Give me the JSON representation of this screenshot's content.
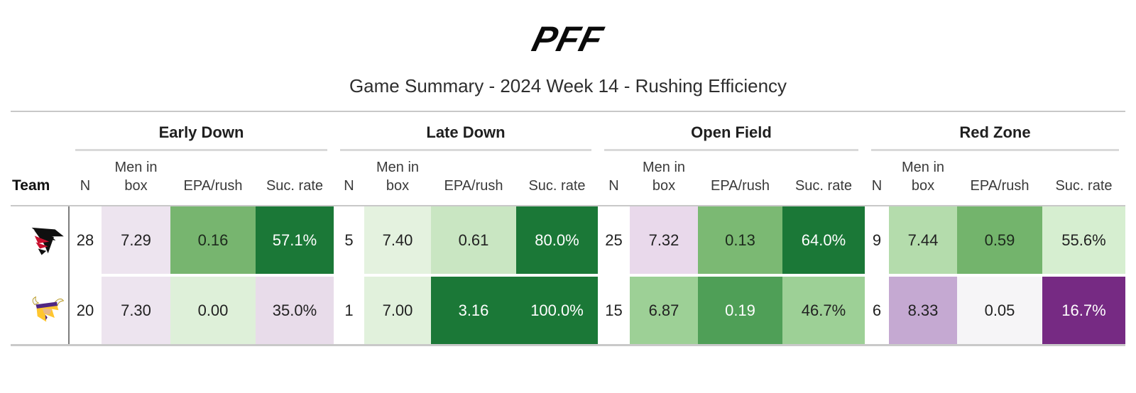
{
  "brand": {
    "logo_text": "PFF"
  },
  "title": "Game Summary - 2024 Week 14 - Rushing Efficiency",
  "table": {
    "team_header": "Team",
    "sections": [
      {
        "label": "Early Down"
      },
      {
        "label": "Late Down"
      },
      {
        "label": "Open Field"
      },
      {
        "label": "Red Zone"
      }
    ],
    "stat_headers": [
      "N",
      "Men in box",
      "EPA/rush",
      "Suc. rate"
    ]
  },
  "colors": {
    "dark_green": "#1b7837",
    "dark_purple": "#762a83",
    "light_purple": "#ede4ef",
    "neutral_white": "#f6f5f7",
    "rule_gray": "#c8c8c8",
    "team_divider_gray": "#7d7d7d"
  },
  "chart_data": {
    "type": "table",
    "title": "Game Summary - 2024 Week 14 - Rushing Efficiency",
    "column_groups": [
      "Early Down",
      "Late Down",
      "Open Field",
      "Red Zone"
    ],
    "columns_per_group": [
      "N",
      "Men in box",
      "EPA/rush",
      "Suc. rate"
    ],
    "rows": [
      {
        "team": "Atlanta Falcons",
        "early_down": {
          "n": 28,
          "men_in_box": 7.29,
          "epa_per_rush": 0.16,
          "success_rate": "57.1%"
        },
        "late_down": {
          "n": 5,
          "men_in_box": 7.4,
          "epa_per_rush": 0.61,
          "success_rate": "80.0%"
        },
        "open_field": {
          "n": 25,
          "men_in_box": 7.32,
          "epa_per_rush": 0.13,
          "success_rate": "64.0%"
        },
        "red_zone": {
          "n": 9,
          "men_in_box": 7.44,
          "epa_per_rush": 0.59,
          "success_rate": "55.6%"
        },
        "cells": [
          {
            "v": "28",
            "bg": "#ffffff",
            "fg": "#212121"
          },
          {
            "v": "7.29",
            "bg": "#ede4ef",
            "fg": "#212121"
          },
          {
            "v": "0.16",
            "bg": "#77b56f",
            "fg": "#1c291c"
          },
          {
            "v": "57.1%",
            "bg": "#1b7837",
            "fg": "#ffffff"
          },
          {
            "v": "5",
            "bg": "#ffffff",
            "fg": "#212121"
          },
          {
            "v": "7.40",
            "bg": "#e4f2df",
            "fg": "#212121"
          },
          {
            "v": "0.61",
            "bg": "#c9e6c2",
            "fg": "#212121"
          },
          {
            "v": "80.0%",
            "bg": "#1b7837",
            "fg": "#ffffff"
          },
          {
            "v": "25",
            "bg": "#ffffff",
            "fg": "#212121"
          },
          {
            "v": "7.32",
            "bg": "#e9d9eb",
            "fg": "#212121"
          },
          {
            "v": "0.13",
            "bg": "#7bb973",
            "fg": "#1c291c"
          },
          {
            "v": "64.0%",
            "bg": "#1b7837",
            "fg": "#ffffff"
          },
          {
            "v": "9",
            "bg": "#ffffff",
            "fg": "#212121"
          },
          {
            "v": "7.44",
            "bg": "#b4dcac",
            "fg": "#212121"
          },
          {
            "v": "0.59",
            "bg": "#73b46c",
            "fg": "#1c291c"
          },
          {
            "v": "55.6%",
            "bg": "#d6eed0",
            "fg": "#212121"
          }
        ]
      },
      {
        "team": "Minnesota Vikings",
        "early_down": {
          "n": 20,
          "men_in_box": 7.3,
          "epa_per_rush": 0.0,
          "success_rate": "35.0%"
        },
        "late_down": {
          "n": 1,
          "men_in_box": 7.0,
          "epa_per_rush": 3.16,
          "success_rate": "100.0%"
        },
        "open_field": {
          "n": 15,
          "men_in_box": 6.87,
          "epa_per_rush": 0.19,
          "success_rate": "46.7%"
        },
        "red_zone": {
          "n": 6,
          "men_in_box": 8.33,
          "epa_per_rush": 0.05,
          "success_rate": "16.7%"
        },
        "cells": [
          {
            "v": "20",
            "bg": "#ffffff",
            "fg": "#212121"
          },
          {
            "v": "7.30",
            "bg": "#ede4ef",
            "fg": "#212121"
          },
          {
            "v": "0.00",
            "bg": "#def0d9",
            "fg": "#212121"
          },
          {
            "v": "35.0%",
            "bg": "#e8dcea",
            "fg": "#212121"
          },
          {
            "v": "1",
            "bg": "#ffffff",
            "fg": "#212121"
          },
          {
            "v": "7.00",
            "bg": "#e1f1dc",
            "fg": "#212121"
          },
          {
            "v": "3.16",
            "bg": "#1b7837",
            "fg": "#ffffff"
          },
          {
            "v": "100.0%",
            "bg": "#1b7837",
            "fg": "#ffffff"
          },
          {
            "v": "15",
            "bg": "#ffffff",
            "fg": "#212121"
          },
          {
            "v": "6.87",
            "bg": "#9dd096",
            "fg": "#212121"
          },
          {
            "v": "0.19",
            "bg": "#4f9f57",
            "fg": "#ffffff"
          },
          {
            "v": "46.7%",
            "bg": "#9dd096",
            "fg": "#212121"
          },
          {
            "v": "6",
            "bg": "#ffffff",
            "fg": "#212121"
          },
          {
            "v": "8.33",
            "bg": "#c5a9d2",
            "fg": "#212121"
          },
          {
            "v": "0.05",
            "bg": "#f6f5f7",
            "fg": "#212121"
          },
          {
            "v": "16.7%",
            "bg": "#762a83",
            "fg": "#ffffff"
          }
        ]
      }
    ]
  }
}
